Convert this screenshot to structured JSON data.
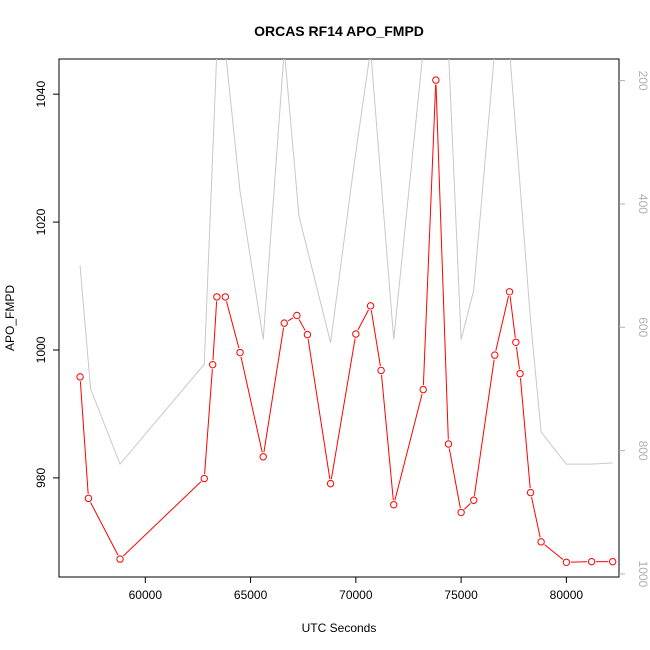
{
  "chart_data": {
    "type": "line",
    "title": "ORCAS RF14 APO_FMPD",
    "xlabel": "UTC Seconds",
    "ylabel": "APO_FMPD",
    "xlim": [
      55900,
      82500
    ],
    "ylim": [
      964.5,
      1045.5
    ],
    "y2lim": [
      1005,
      165
    ],
    "x_ticks": [
      60000,
      65000,
      70000,
      75000,
      80000
    ],
    "x_tick_labels": [
      "60000",
      "65000",
      "70000",
      "75000",
      "80000"
    ],
    "y_ticks": [
      980,
      1000,
      1020,
      1040
    ],
    "y_tick_labels": [
      "980",
      "1000",
      "1020",
      "1040"
    ],
    "y2_ticks": [
      200,
      400,
      600,
      800,
      1000
    ],
    "y2_tick_labels": [
      "200",
      "400",
      "600",
      "800",
      "1000"
    ],
    "series": [
      {
        "color": "#ff0000",
        "axis": "left",
        "markers": "open-circle",
        "x": [
          56900,
          57300,
          58800,
          62800,
          63200,
          63400,
          63800,
          64500,
          65600,
          66600,
          67200,
          67700,
          68800,
          70000,
          70700,
          71200,
          71800,
          73200,
          73800,
          74400,
          75000,
          75600,
          76600,
          77300,
          77600,
          77800,
          78300,
          78800,
          80000,
          81200,
          82200
        ],
        "y": [
          995.8,
          976.8,
          967.3,
          979.9,
          997.7,
          1008.3,
          1008.3,
          999.6,
          983.3,
          1004.2,
          1005.4,
          1002.4,
          979.1,
          1002.5,
          1006.9,
          996.8,
          975.8,
          993.8,
          1042.2,
          985.3,
          974.6,
          976.5,
          999.2,
          1009.1,
          1001.2,
          996.3,
          977.7,
          970.0,
          966.8,
          966.9,
          966.9
        ]
      },
      {
        "color": "#c8c8c8",
        "axis": "right",
        "markers": "none",
        "x": [
          56900,
          57400,
          58800,
          62800,
          63400,
          63800,
          64500,
          65600,
          66600,
          67300,
          68800,
          69900,
          70700,
          71800,
          73200,
          73800,
          74400,
          75000,
          75600,
          76600,
          77300,
          78300,
          78800,
          80000,
          81200,
          82200
        ],
        "y": [
          500,
          700,
          822,
          660,
          150,
          150,
          380,
          620,
          150,
          420,
          625,
          340,
          150,
          620,
          150,
          150,
          150,
          620,
          540,
          150,
          150,
          590,
          770,
          822,
          822,
          820
        ]
      }
    ]
  }
}
